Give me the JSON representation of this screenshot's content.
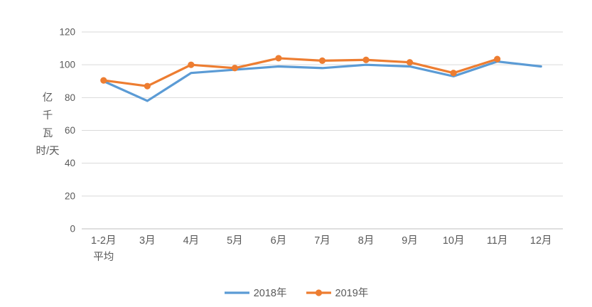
{
  "chart_data": {
    "type": "line",
    "title": "",
    "ylabel": "亿千瓦时/天",
    "ylabel_lines": [
      "亿",
      "千",
      "瓦",
      "时/天"
    ],
    "categories": [
      "1-2月\n平均",
      "3月",
      "4月",
      "5月",
      "6月",
      "7月",
      "8月",
      "9月",
      "10月",
      "11月",
      "12月"
    ],
    "ylim": [
      0,
      120
    ],
    "ytick_step": 20,
    "grid": true,
    "legend_position": "bottom",
    "series": [
      {
        "name": "2018年",
        "color": "#5B9BD5",
        "marker": false,
        "values": [
          90,
          78,
          95,
          97,
          99,
          98,
          100,
          99,
          93,
          102,
          99
        ]
      },
      {
        "name": "2019年",
        "color": "#ED7D31",
        "marker": true,
        "values": [
          90.5,
          87,
          100,
          98,
          104,
          102.5,
          103,
          101.5,
          95,
          103.5,
          null
        ]
      }
    ],
    "text_color": "#595959",
    "gridline_color": "#D9D9D9",
    "axis_color": "#BFBFBF"
  }
}
